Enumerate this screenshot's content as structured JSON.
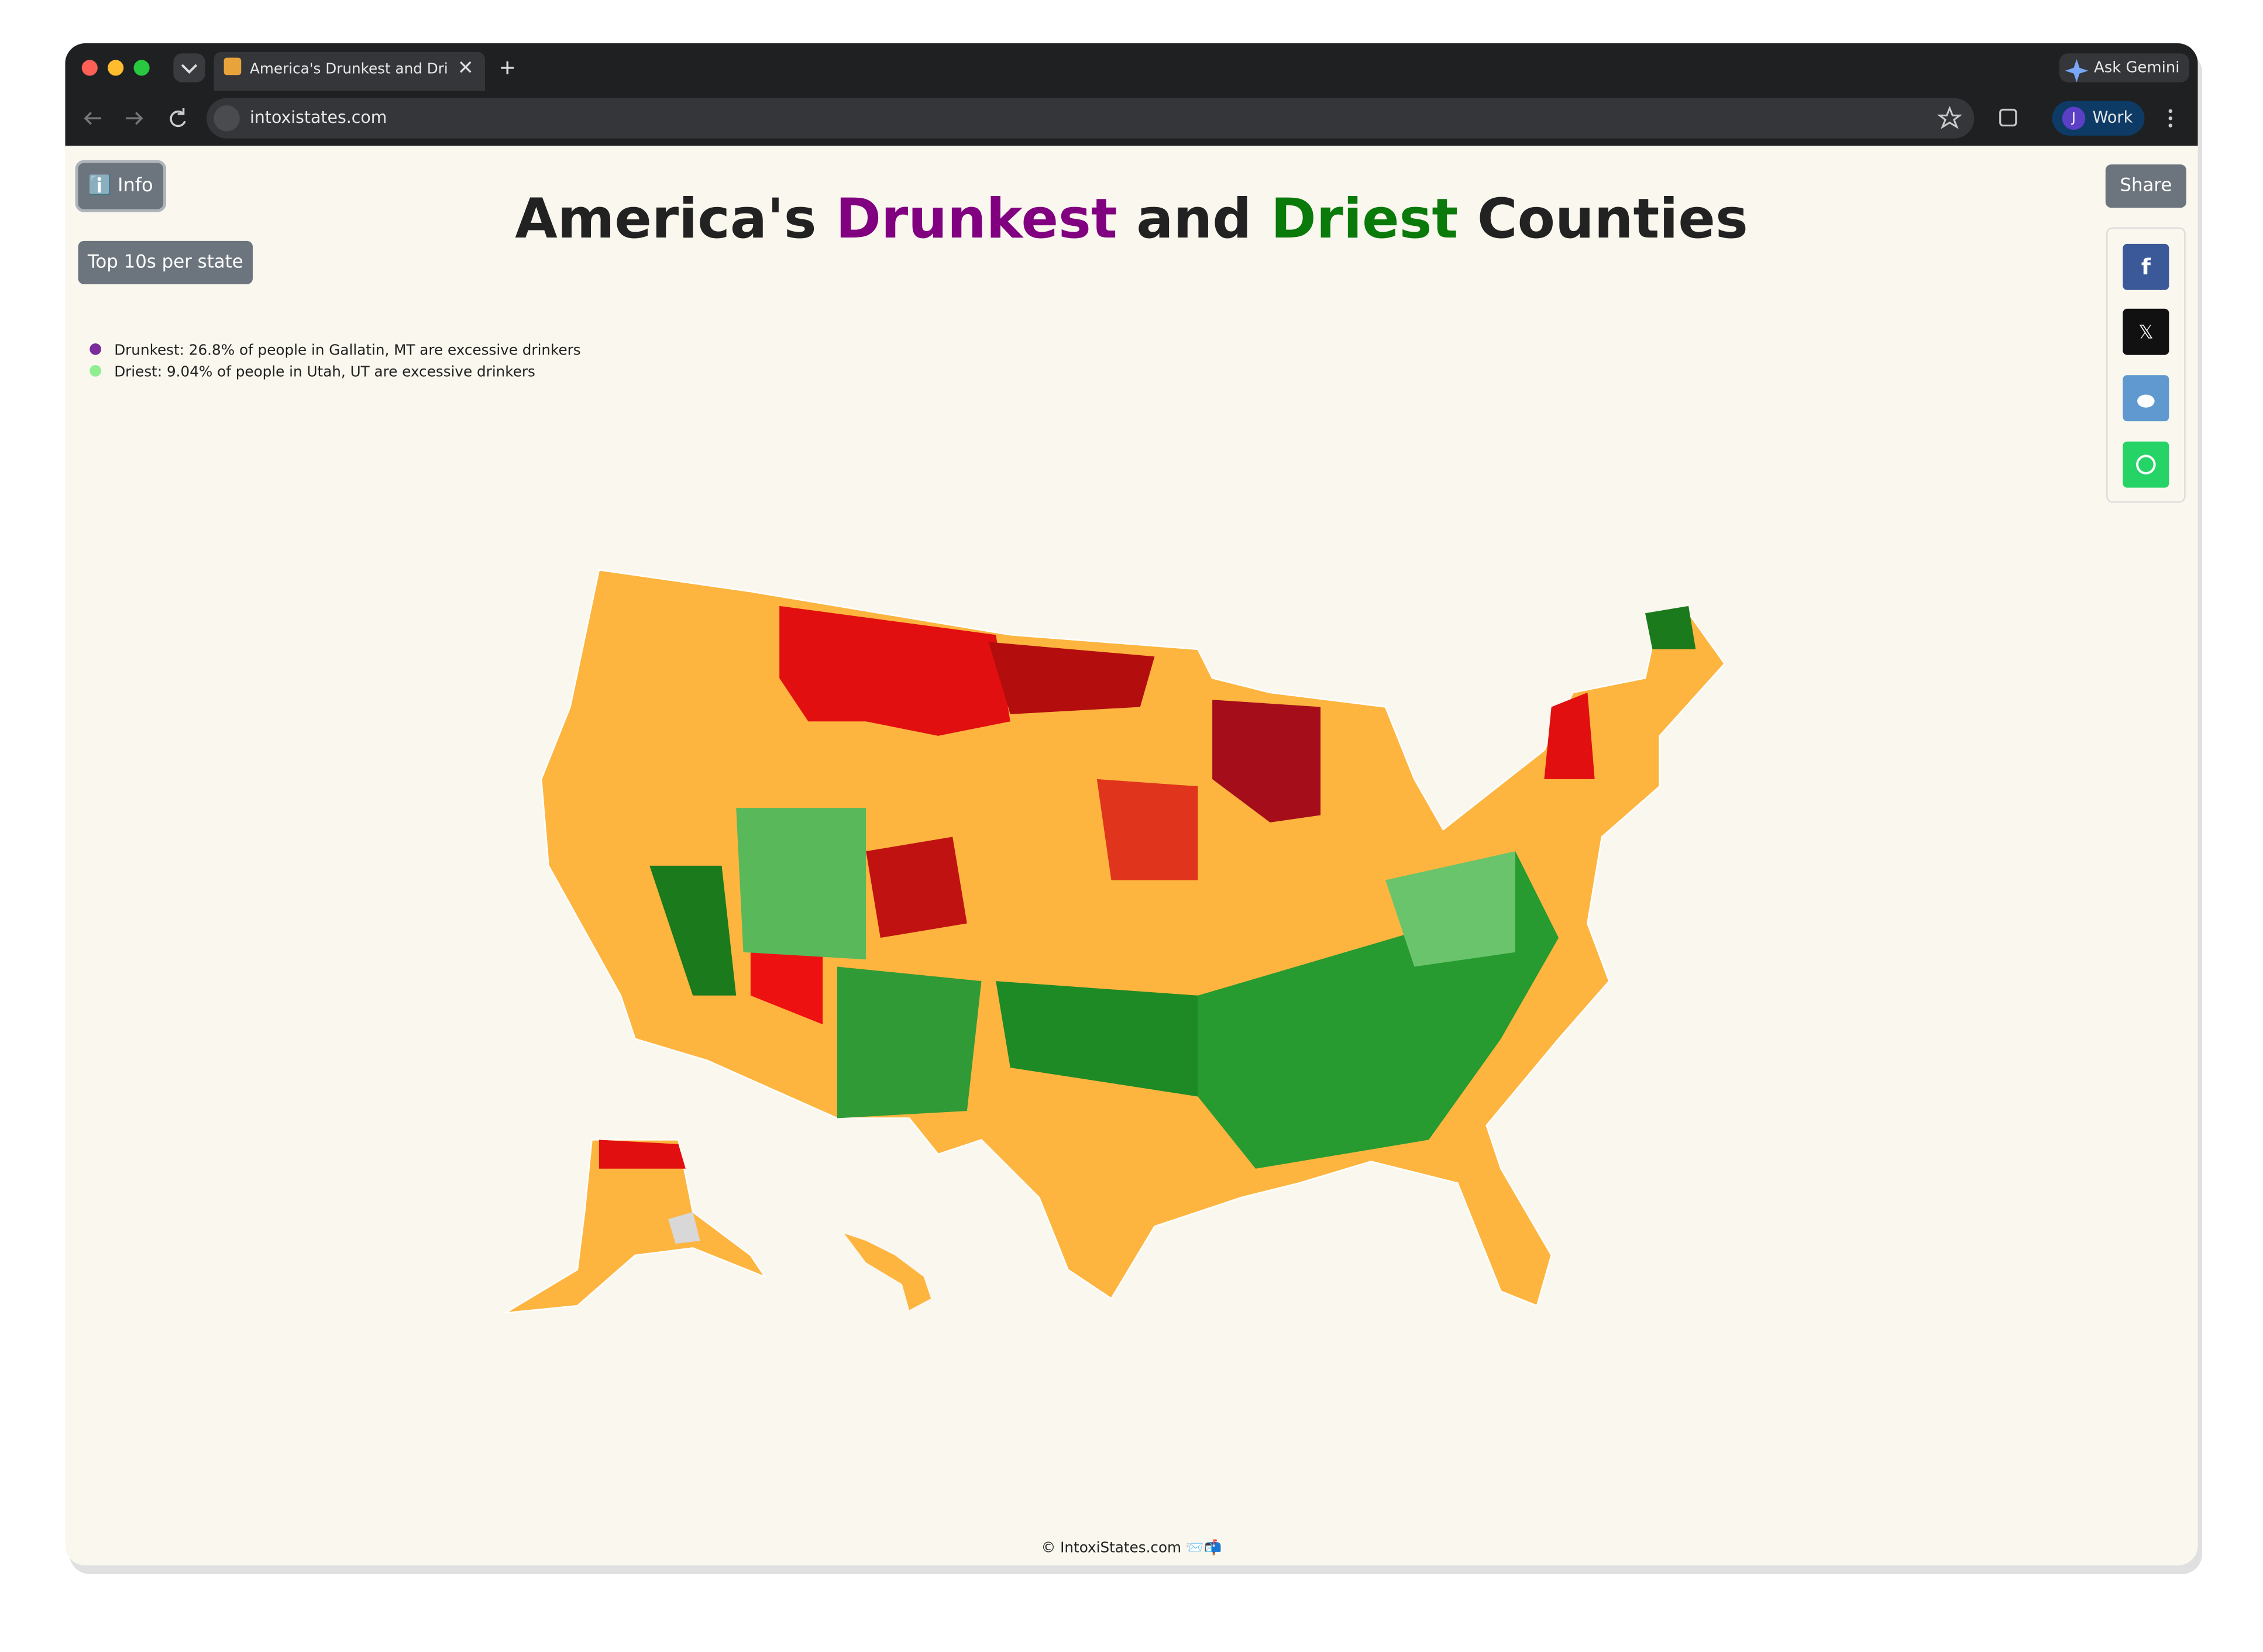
{
  "browser": {
    "tab_title": "America's Drunkest and Driest Counties",
    "ask_gemini": "Ask Gemini",
    "url": "intoxistates.com",
    "profile_initial": "J",
    "profile_name": "Work"
  },
  "page": {
    "info_button": "ℹ️ Info",
    "top10_button": "Top 10s per state",
    "share_button": "Share",
    "title": {
      "part1": "America's ",
      "drunkest": "Drunkest",
      "part2": " and ",
      "driest": "Driest",
      "part3": " Counties"
    },
    "legend": [
      "Drunkest: 26.8% of people in Gallatin, MT are excessive drinkers",
      "Driest: 9.04% of people in Utah, UT are excessive drinkers"
    ],
    "share_icons": [
      "f",
      "𝕏"
    ],
    "footer": "© IntoxiStates.com 📨📬"
  }
}
